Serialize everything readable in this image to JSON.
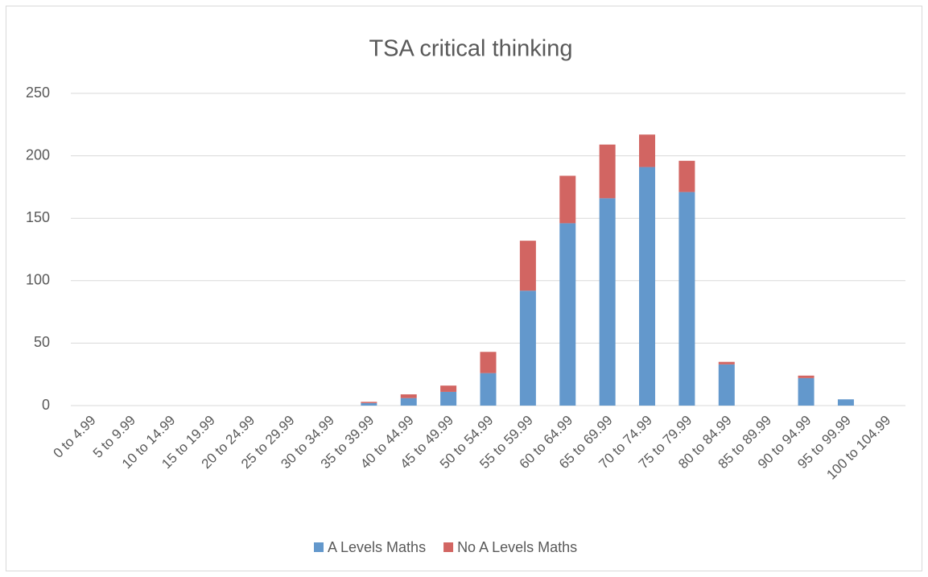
{
  "chart_data": {
    "type": "stacked_bar",
    "title": "TSA critical thinking",
    "categories": [
      "0 to 4.99",
      "5 to 9.99",
      "10 to 14.99",
      "15 to 19.99",
      "20 to 24.99",
      "25 to 29.99",
      "30 to 34.99",
      "35 to 39.99",
      "40 to 44.99",
      "45 to 49.99",
      "50 to 54.99",
      "55 to 59.99",
      "60 to 64.99",
      "65 to 69.99",
      "70 to 74.99",
      "75 to 79.99",
      "80 to 84.99",
      "85 to 89.99",
      "90 to 94.99",
      "95 to 99.99",
      "100 to 104.99"
    ],
    "series": [
      {
        "name": "A Levels Maths",
        "color": "#6398cc",
        "values": [
          0,
          0,
          0,
          0,
          0,
          0,
          0,
          2,
          6,
          11,
          26,
          92,
          146,
          166,
          191,
          171,
          33,
          0,
          22,
          5,
          0
        ]
      },
      {
        "name": "No A Levels Maths",
        "color": "#d26562",
        "values": [
          0,
          0,
          0,
          0,
          0,
          0,
          0,
          1,
          3,
          5,
          17,
          40,
          38,
          43,
          26,
          25,
          2,
          0,
          2,
          0,
          0
        ]
      }
    ],
    "ylim": [
      0,
      250
    ],
    "yticks": [
      0,
      50,
      100,
      150,
      200,
      250
    ],
    "grid": true,
    "legend": "bottom"
  }
}
